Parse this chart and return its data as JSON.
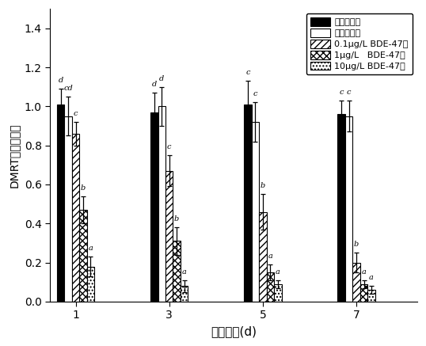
{
  "groups": [
    1,
    3,
    5,
    7
  ],
  "series_labels": [
    "空白对照组",
    "溶剂对照组",
    "0.1μg/L BDE-47组",
    "1μg/L   BDE-47组",
    "10μg/L BDE-47组"
  ],
  "bar_values": [
    [
      1.01,
      0.95,
      0.86,
      0.47,
      0.18
    ],
    [
      0.97,
      1.0,
      0.67,
      0.31,
      0.08
    ],
    [
      1.01,
      0.92,
      0.46,
      0.15,
      0.09
    ],
    [
      0.96,
      0.95,
      0.2,
      0.09,
      0.06
    ]
  ],
  "error_values": [
    [
      0.08,
      0.1,
      0.06,
      0.07,
      0.05
    ],
    [
      0.1,
      0.1,
      0.08,
      0.07,
      0.03
    ],
    [
      0.12,
      0.1,
      0.09,
      0.04,
      0.02
    ],
    [
      0.07,
      0.08,
      0.05,
      0.02,
      0.02
    ]
  ],
  "sig_labels": [
    [
      "d",
      "cd",
      "c",
      "b",
      "a"
    ],
    [
      "d",
      "d",
      "c",
      "b",
      "a"
    ],
    [
      "c",
      "c",
      "b",
      "a",
      "a"
    ],
    [
      "c",
      "c",
      "b",
      "a",
      "a"
    ]
  ],
  "ylabel": "DMRT基因表达量",
  "xlabel": "胁迫时间(d)",
  "ylim": [
    0,
    1.5
  ],
  "yticks": [
    0.0,
    0.2,
    0.4,
    0.6,
    0.8,
    1.0,
    1.2,
    1.4
  ],
  "group_positions": [
    1,
    3,
    5,
    7
  ],
  "n_series": 5,
  "bar_width": 0.16
}
